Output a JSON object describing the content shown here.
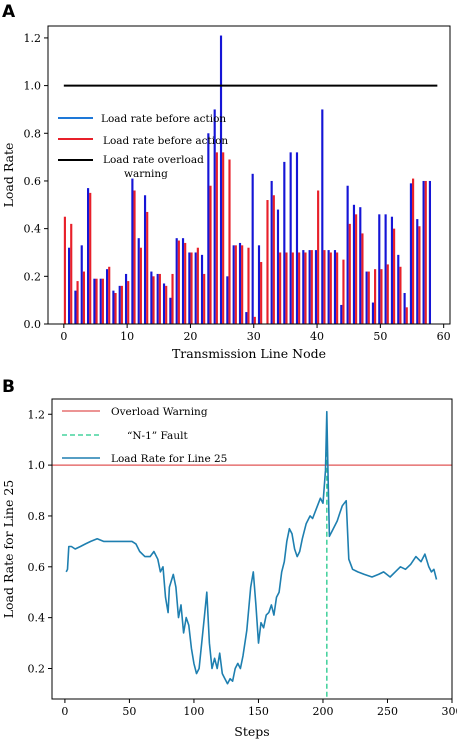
{
  "chart_data": [
    {
      "panel": "A",
      "type": "bar",
      "xlabel": "Transmission Line Node",
      "ylabel": "Load Rate",
      "xlim": [
        -2.5,
        61
      ],
      "ylim": [
        0,
        1.25
      ],
      "xticks": [
        0,
        10,
        20,
        30,
        40,
        50,
        60
      ],
      "yticks": [
        0.0,
        0.2,
        0.4,
        0.6,
        0.8,
        1.0,
        1.2
      ],
      "legend_position": "upper-left",
      "threshold": {
        "name": "Load rate overload warning",
        "name_line1": "Load rate overload",
        "name_line2": "warning",
        "value": 1.0,
        "x_range": [
          0,
          59
        ],
        "color": "#000000"
      },
      "series": [
        {
          "name": "Load rate before action",
          "color": "#1515d6",
          "values": [
            0.0,
            0.32,
            0.14,
            0.33,
            0.57,
            0.19,
            0.19,
            0.23,
            0.14,
            0.16,
            0.21,
            0.61,
            0.36,
            0.54,
            0.22,
            0.21,
            0.17,
            0.11,
            0.36,
            0.36,
            0.3,
            0.3,
            0.29,
            0.8,
            0.9,
            1.21,
            0.2,
            0.33,
            0.34,
            0.05,
            0.63,
            0.33,
            0.0,
            0.6,
            0.48,
            0.68,
            0.72,
            0.72,
            0.31,
            0.31,
            0.31,
            0.9,
            0.31,
            0.31,
            0.08,
            0.58,
            0.5,
            0.49,
            0.22,
            0.09,
            0.46,
            0.46,
            0.45,
            0.29,
            0.13,
            0.59,
            0.44,
            0.6,
            0.6
          ]
        },
        {
          "name": "Load rate before action",
          "color": "#e8202a",
          "values": [
            0.45,
            0.42,
            0.18,
            0.22,
            0.55,
            0.19,
            0.19,
            0.24,
            0.13,
            0.16,
            0.18,
            0.56,
            0.32,
            0.47,
            0.2,
            0.21,
            0.16,
            0.21,
            0.35,
            0.34,
            0.3,
            0.32,
            0.21,
            0.58,
            0.72,
            0.72,
            0.69,
            0.33,
            0.33,
            0.32,
            0.03,
            0.26,
            0.52,
            0.54,
            0.3,
            0.3,
            0.3,
            0.3,
            0.3,
            0.31,
            0.56,
            0.31,
            0.3,
            0.3,
            0.27,
            0.42,
            0.46,
            0.38,
            0.22,
            0.23,
            0.23,
            0.25,
            0.4,
            0.24,
            0.07,
            0.61,
            0.41,
            0.6,
            0.0
          ]
        }
      ]
    },
    {
      "panel": "B",
      "type": "line",
      "xlabel": "Steps",
      "ylabel": "Load Rate for Line 25",
      "xlim": [
        -10,
        300
      ],
      "ylim": [
        0.08,
        1.26
      ],
      "xticks": [
        0,
        50,
        100,
        150,
        200,
        250,
        300
      ],
      "yticks": [
        0.2,
        0.4,
        0.6,
        0.8,
        1.0,
        1.2
      ],
      "legend_position": "upper-left",
      "overload": {
        "name": "Overload Warning",
        "value": 1.0,
        "color": "#e05555"
      },
      "fault": {
        "name": "“N-1” Fault",
        "x": 203,
        "color": "#20c98a"
      },
      "series": [
        {
          "name": "Load Rate for Line 25",
          "color": "#1e7fb0",
          "points": [
            [
              1,
              0.58
            ],
            [
              2,
              0.59
            ],
            [
              3,
              0.68
            ],
            [
              5,
              0.68
            ],
            [
              8,
              0.67
            ],
            [
              12,
              0.68
            ],
            [
              16,
              0.69
            ],
            [
              20,
              0.7
            ],
            [
              25,
              0.71
            ],
            [
              30,
              0.7
            ],
            [
              36,
              0.7
            ],
            [
              42,
              0.7
            ],
            [
              48,
              0.7
            ],
            [
              52,
              0.7
            ],
            [
              55,
              0.69
            ],
            [
              58,
              0.66
            ],
            [
              62,
              0.64
            ],
            [
              66,
              0.64
            ],
            [
              69,
              0.66
            ],
            [
              72,
              0.63
            ],
            [
              74,
              0.58
            ],
            [
              76,
              0.6
            ],
            [
              78,
              0.48
            ],
            [
              80,
              0.42
            ],
            [
              81,
              0.52
            ],
            [
              84,
              0.57
            ],
            [
              86,
              0.52
            ],
            [
              88,
              0.4
            ],
            [
              90,
              0.45
            ],
            [
              92,
              0.34
            ],
            [
              94,
              0.4
            ],
            [
              96,
              0.37
            ],
            [
              98,
              0.28
            ],
            [
              100,
              0.22
            ],
            [
              102,
              0.18
            ],
            [
              104,
              0.2
            ],
            [
              106,
              0.3
            ],
            [
              108,
              0.4
            ],
            [
              110,
              0.5
            ],
            [
              112,
              0.3
            ],
            [
              114,
              0.2
            ],
            [
              116,
              0.24
            ],
            [
              118,
              0.2
            ],
            [
              120,
              0.26
            ],
            [
              122,
              0.18
            ],
            [
              124,
              0.16
            ],
            [
              126,
              0.14
            ],
            [
              128,
              0.16
            ],
            [
              130,
              0.15
            ],
            [
              132,
              0.2
            ],
            [
              134,
              0.22
            ],
            [
              136,
              0.2
            ],
            [
              138,
              0.25
            ],
            [
              141,
              0.35
            ],
            [
              144,
              0.52
            ],
            [
              146,
              0.58
            ],
            [
              148,
              0.45
            ],
            [
              150,
              0.3
            ],
            [
              152,
              0.38
            ],
            [
              154,
              0.36
            ],
            [
              156,
              0.41
            ],
            [
              158,
              0.42
            ],
            [
              160,
              0.45
            ],
            [
              162,
              0.41
            ],
            [
              164,
              0.48
            ],
            [
              166,
              0.5
            ],
            [
              168,
              0.58
            ],
            [
              170,
              0.62
            ],
            [
              172,
              0.7
            ],
            [
              174,
              0.75
            ],
            [
              176,
              0.73
            ],
            [
              178,
              0.67
            ],
            [
              180,
              0.64
            ],
            [
              182,
              0.66
            ],
            [
              184,
              0.71
            ],
            [
              187,
              0.77
            ],
            [
              190,
              0.8
            ],
            [
              192,
              0.79
            ],
            [
              195,
              0.83
            ],
            [
              198,
              0.87
            ],
            [
              200,
              0.85
            ],
            [
              202,
              0.98
            ],
            [
              203,
              1.21
            ],
            [
              204,
              0.95
            ],
            [
              205,
              0.72
            ],
            [
              207,
              0.74
            ],
            [
              209,
              0.76
            ],
            [
              211,
              0.78
            ],
            [
              213,
              0.81
            ],
            [
              215,
              0.84
            ],
            [
              218,
              0.86
            ],
            [
              220,
              0.63
            ],
            [
              223,
              0.59
            ],
            [
              227,
              0.58
            ],
            [
              232,
              0.57
            ],
            [
              238,
              0.56
            ],
            [
              243,
              0.57
            ],
            [
              247,
              0.58
            ],
            [
              252,
              0.56
            ],
            [
              256,
              0.58
            ],
            [
              260,
              0.6
            ],
            [
              264,
              0.59
            ],
            [
              268,
              0.61
            ],
            [
              272,
              0.64
            ],
            [
              276,
              0.62
            ],
            [
              279,
              0.65
            ],
            [
              282,
              0.6
            ],
            [
              284,
              0.58
            ],
            [
              286,
              0.59
            ],
            [
              288,
              0.55
            ]
          ]
        }
      ]
    }
  ]
}
